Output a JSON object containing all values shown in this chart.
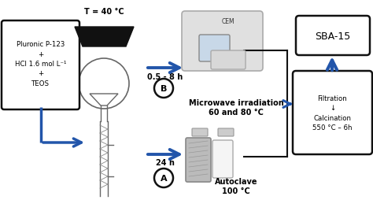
{
  "bg_color": "#ffffff",
  "box1_text": "Pluronic P-123\n+\nHCl 1.6 mol L⁻¹\n+\nTEOS",
  "box_filtration_text": "Filtration\n↓\nCalcination\n550 °C – 6h",
  "box_sba_text": "SBA-15",
  "autoclave_text": "Autoclave\n100 °C",
  "microwave_text": "Microwave irradiation\n60 and 80 °C",
  "arrow_24h_text": "24 h",
  "arrow_05_8h_text": "0.5 - 8 h",
  "T_label": "T = 40 °C",
  "arrow_color": "#2255aa",
  "text_color": "#000000",
  "bracket_color": "#111111"
}
